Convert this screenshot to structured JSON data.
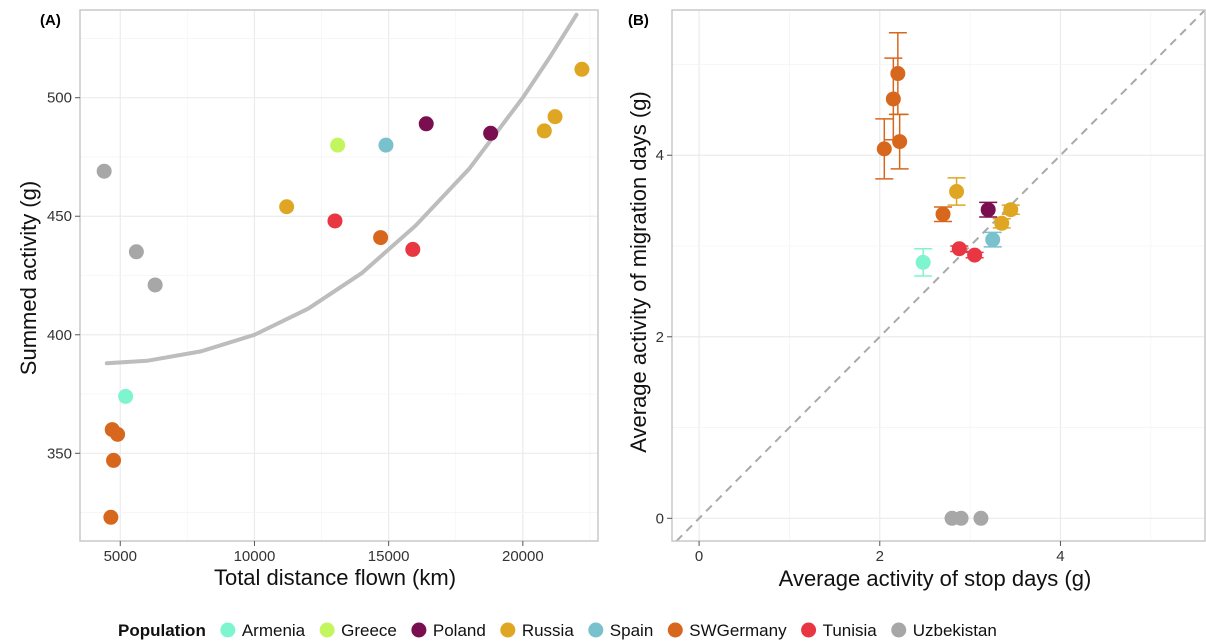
{
  "chart_data": [
    {
      "type": "scatter",
      "panel_label": "(A)",
      "xlabel": "Total distance flown (km)",
      "ylabel": "Summed activity (g)",
      "xlim": [
        3500,
        22800
      ],
      "ylim": [
        313,
        537
      ],
      "xticks": [
        5000,
        10000,
        15000,
        20000
      ],
      "yticks": [
        350,
        400,
        450,
        500
      ],
      "grid": true,
      "points": [
        {
          "population": "Uzbekistan",
          "x": 4400,
          "y": 469
        },
        {
          "population": "Uzbekistan",
          "x": 5600,
          "y": 435
        },
        {
          "population": "Uzbekistan",
          "x": 6300,
          "y": 421
        },
        {
          "population": "Armenia",
          "x": 5200,
          "y": 374
        },
        {
          "population": "SWGermany",
          "x": 4700,
          "y": 360
        },
        {
          "population": "SWGermany",
          "x": 4900,
          "y": 358
        },
        {
          "population": "SWGermany",
          "x": 4750,
          "y": 347
        },
        {
          "population": "SWGermany",
          "x": 4650,
          "y": 323
        },
        {
          "population": "SWGermany",
          "x": 14700,
          "y": 441
        },
        {
          "population": "Russia",
          "x": 11200,
          "y": 454
        },
        {
          "population": "Russia",
          "x": 20800,
          "y": 486
        },
        {
          "population": "Russia",
          "x": 21200,
          "y": 492
        },
        {
          "population": "Russia",
          "x": 22200,
          "y": 512
        },
        {
          "population": "Tunisia",
          "x": 13000,
          "y": 448
        },
        {
          "population": "Tunisia",
          "x": 15900,
          "y": 436
        },
        {
          "population": "Greece",
          "x": 13100,
          "y": 480
        },
        {
          "population": "Spain",
          "x": 14900,
          "y": 480
        },
        {
          "population": "Poland",
          "x": 16400,
          "y": 489
        },
        {
          "population": "Poland",
          "x": 18800,
          "y": 485
        }
      ],
      "fit_curve": {
        "x": [
          4500,
          6000,
          8000,
          10000,
          12000,
          14000,
          16000,
          18000,
          20000,
          21000,
          22000
        ],
        "y": [
          388,
          389,
          393,
          400,
          411,
          426,
          446,
          470,
          500,
          517,
          535
        ]
      }
    },
    {
      "type": "scatter",
      "panel_label": "(B)",
      "xlabel": "Average activity of stop days (g)",
      "ylabel": "Average activity of migration days (g)",
      "xlim": [
        -0.3,
        5.6
      ],
      "ylim": [
        -0.25,
        5.6
      ],
      "xticks": [
        0,
        2,
        4
      ],
      "yticks": [
        0,
        2,
        4
      ],
      "grid": true,
      "identity_line": true,
      "points": [
        {
          "population": "SWGermany",
          "x": 2.05,
          "y": 4.07,
          "err": 0.33
        },
        {
          "population": "SWGermany",
          "x": 2.15,
          "y": 4.62,
          "err": 0.45
        },
        {
          "population": "SWGermany",
          "x": 2.2,
          "y": 4.9,
          "err": 0.45
        },
        {
          "population": "SWGermany",
          "x": 2.22,
          "y": 4.15,
          "err": 0.3
        },
        {
          "population": "SWGermany",
          "x": 2.7,
          "y": 3.35,
          "err": 0.08
        },
        {
          "population": "Russia",
          "x": 2.85,
          "y": 3.6,
          "err": 0.15
        },
        {
          "population": "Russia",
          "x": 3.35,
          "y": 3.25,
          "err": 0.05
        },
        {
          "population": "Russia",
          "x": 3.45,
          "y": 3.4,
          "err": 0.05
        },
        {
          "population": "Poland",
          "x": 3.2,
          "y": 3.4,
          "err": 0.08
        },
        {
          "population": "Spain",
          "x": 3.25,
          "y": 3.07,
          "err": 0.08
        },
        {
          "population": "Tunisia",
          "x": 2.88,
          "y": 2.97,
          "err": 0.03
        },
        {
          "population": "Tunisia",
          "x": 3.05,
          "y": 2.9,
          "err": 0.03
        },
        {
          "population": "Armenia",
          "x": 2.48,
          "y": 2.82,
          "err": 0.15
        },
        {
          "population": "Uzbekistan",
          "x": 2.8,
          "y": 0.0,
          "err": 0
        },
        {
          "population": "Uzbekistan",
          "x": 2.9,
          "y": 0.0,
          "err": 0
        },
        {
          "population": "Uzbekistan",
          "x": 3.12,
          "y": 0.0,
          "err": 0
        }
      ]
    }
  ],
  "legend": {
    "title": "Population",
    "position": "bottom",
    "items": [
      {
        "name": "Armenia",
        "color": "#7ff5cf"
      },
      {
        "name": "Greece",
        "color": "#c3f55f"
      },
      {
        "name": "Poland",
        "color": "#7a0f4f"
      },
      {
        "name": "Russia",
        "color": "#dfa623"
      },
      {
        "name": "Spain",
        "color": "#79c1cc"
      },
      {
        "name": "SWGermany",
        "color": "#d8671e"
      },
      {
        "name": "Tunisia",
        "color": "#e83643"
      },
      {
        "name": "Uzbekistan",
        "color": "#a7a7a7"
      }
    ]
  }
}
